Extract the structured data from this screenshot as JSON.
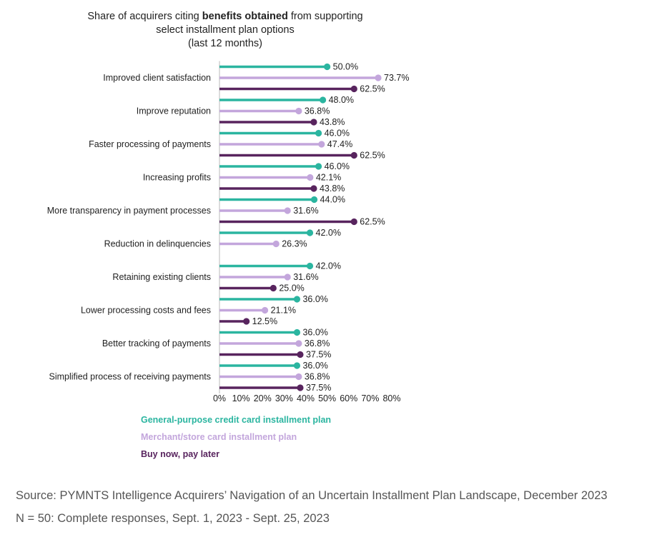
{
  "chart_data": {
    "type": "bar",
    "style": "lollipop-horizontal",
    "title_parts": [
      "Share of acquirers citing ",
      "benefits obtained",
      " from supporting"
    ],
    "title_line2": "select installment plan options",
    "title_line3": "(last 12 months)",
    "categories": [
      "Improved client satisfaction",
      "Improve reputation",
      "Faster processing of payments",
      "Increasing profits",
      "More transparency in payment processes",
      "Reduction in delinquencies",
      "Retaining existing clients",
      "Lower processing costs and fees",
      "Better tracking of payments",
      "Simplified process of receiving payments"
    ],
    "series": [
      {
        "name": "General-purpose credit card installment plan",
        "color": "#2bb5a0",
        "values": [
          50.0,
          48.0,
          46.0,
          46.0,
          44.0,
          42.0,
          42.0,
          36.0,
          36.0,
          36.0
        ]
      },
      {
        "name": "Merchant/store card installment plan",
        "color": "#c3a6dc",
        "values": [
          73.7,
          36.8,
          47.4,
          42.1,
          31.6,
          26.3,
          31.6,
          21.1,
          36.8,
          36.8
        ]
      },
      {
        "name": "Buy now, pay later",
        "color": "#58245e",
        "values": [
          62.5,
          43.8,
          62.5,
          43.8,
          62.5,
          null,
          25.0,
          12.5,
          37.5,
          37.5
        ]
      }
    ],
    "xlim": [
      0,
      80
    ],
    "xticks": [
      "0%",
      "10%",
      "20%",
      "30%",
      "40%",
      "50%",
      "60%",
      "70%",
      "80%"
    ],
    "grid": false,
    "legend_placement": "bottom-left"
  },
  "source": "Source: PYMNTS Intelligence Acquirers’ Navigation of an Uncertain Installment Plan Landscape, December 2023",
  "note": "N = 50: Complete responses, Sept. 1, 2023 - Sept. 25, 2023"
}
